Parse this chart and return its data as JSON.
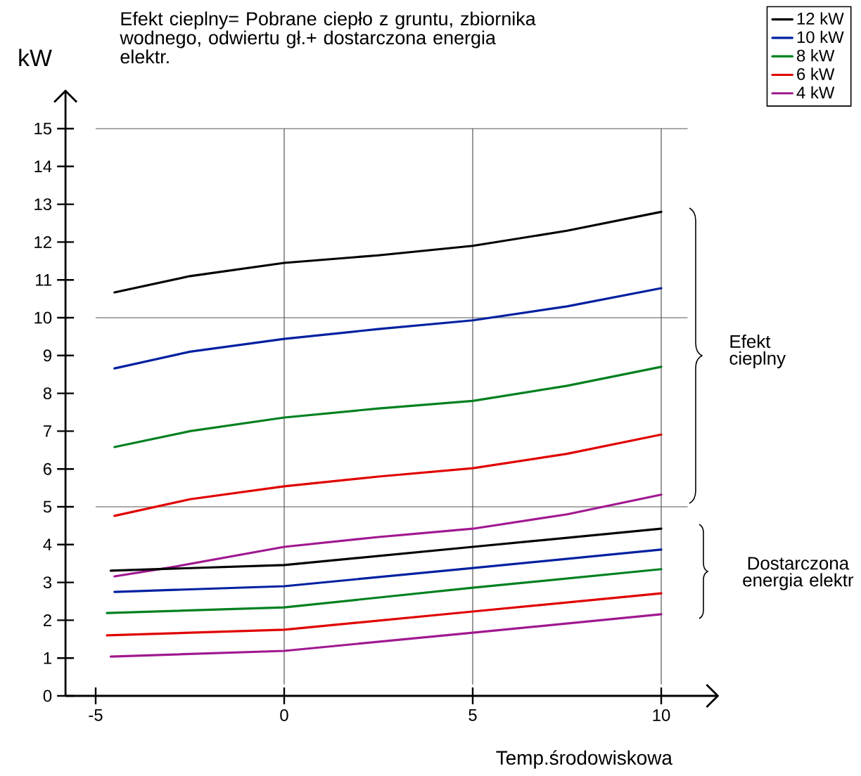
{
  "chart_data": {
    "type": "line",
    "xlabel": "Temp.środowiskowa",
    "ylabel": "kW",
    "xlim": [
      -5.8,
      11.5
    ],
    "ylim": [
      0,
      16
    ],
    "xticks": [
      -5,
      0,
      5,
      10
    ],
    "yticks": [
      0,
      1,
      2,
      3,
      4,
      5,
      6,
      7,
      8,
      9,
      10,
      11,
      12,
      13,
      14,
      15
    ],
    "legend": "top right",
    "annotations": [
      "Efekt cieplny= Pobrane ciepło z gruntu, zbiornika wodnego, odwiertu gł.+ dostarczona energia elektr.",
      "Efekt cieplny",
      "Dostarczona energia elektr"
    ],
    "ref_lines": [
      {
        "axis": "y",
        "value": 5,
        "color": "#555555"
      },
      {
        "axis": "y",
        "value": 10,
        "color": "#555555"
      },
      {
        "axis": "y",
        "value": 15,
        "color": "#555555"
      },
      {
        "axis": "x",
        "value": 0,
        "color": "#555555"
      },
      {
        "axis": "x",
        "value": 5,
        "color": "#555555"
      },
      {
        "axis": "x",
        "value": 10,
        "color": "#555555"
      }
    ],
    "series": [
      {
        "name": "12 kW",
        "color": "#000000",
        "x": [
          -4.5,
          -2.5,
          0,
          2.5,
          5,
          7.5,
          10
        ],
        "values": [
          10.67,
          11.1,
          11.45,
          11.65,
          11.9,
          12.3,
          12.8
        ]
      },
      {
        "name": "10 kW",
        "color": "#0020a0",
        "x": [
          -4.5,
          -2.5,
          0,
          2.5,
          5,
          7.5,
          10
        ],
        "values": [
          8.66,
          9.1,
          9.44,
          9.7,
          9.93,
          10.3,
          10.78
        ]
      },
      {
        "name": "8 kW",
        "color": "#008020",
        "x": [
          -4.5,
          -2.5,
          0,
          2.5,
          5,
          7.5,
          10
        ],
        "values": [
          6.58,
          7.0,
          7.36,
          7.6,
          7.8,
          8.2,
          8.7
        ]
      },
      {
        "name": "6 kW",
        "color": "#e00000",
        "x": [
          -4.5,
          -2.5,
          0,
          2.5,
          5,
          7.5,
          10
        ],
        "values": [
          4.76,
          5.2,
          5.54,
          5.8,
          6.02,
          6.4,
          6.91
        ]
      },
      {
        "name": "4 kW",
        "color": "#a01890",
        "x": [
          -4.5,
          -3,
          0,
          2.5,
          5,
          7.5,
          10
        ],
        "values": [
          3.16,
          3.4,
          3.94,
          4.2,
          4.42,
          4.8,
          5.32
        ]
      },
      {
        "color": "#000000",
        "x": [
          -4.6,
          0,
          5,
          10
        ],
        "values": [
          3.31,
          3.46,
          3.94,
          4.42
        ]
      },
      {
        "color": "#0020a0",
        "x": [
          -4.5,
          0,
          5,
          10
        ],
        "values": [
          2.75,
          2.9,
          3.38,
          3.87
        ]
      },
      {
        "color": "#008020",
        "x": [
          -4.7,
          0,
          5,
          10
        ],
        "values": [
          2.19,
          2.34,
          2.86,
          3.35
        ]
      },
      {
        "color": "#e00000",
        "x": [
          -4.7,
          0,
          5,
          10
        ],
        "values": [
          1.6,
          1.75,
          2.23,
          2.71
        ]
      },
      {
        "color": "#a01890",
        "x": [
          -4.6,
          0,
          5,
          10
        ],
        "values": [
          1.04,
          1.19,
          1.67,
          2.16
        ]
      }
    ]
  }
}
